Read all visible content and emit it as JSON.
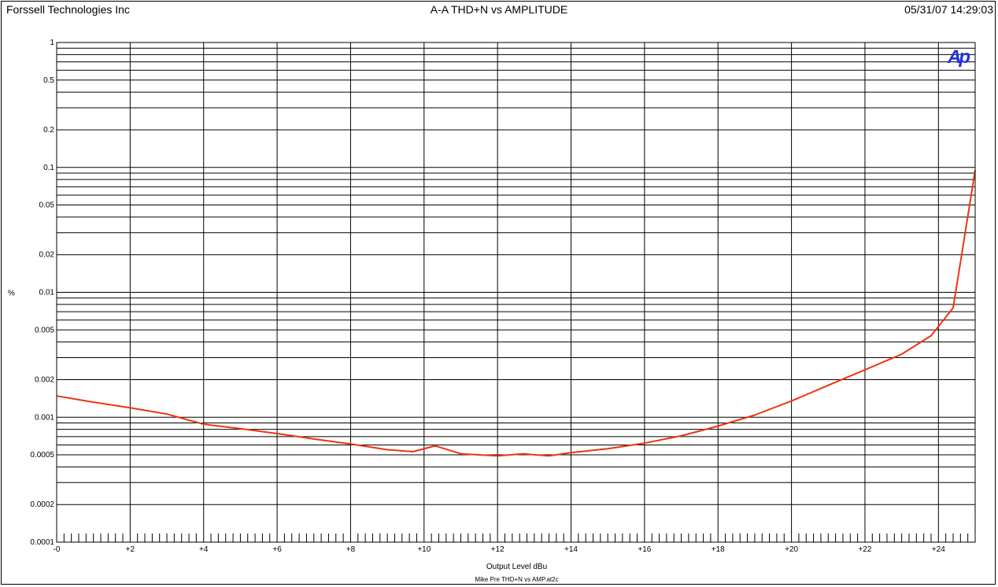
{
  "header": {
    "company": "Forssell Technologies Inc",
    "title": "A-A THD+N vs AMPLITUDE",
    "timestamp": "05/31/07 14:29:03"
  },
  "logo": {
    "text": "Ap",
    "color": "#2233dd"
  },
  "footer": {
    "filename": "Mike Pre THD+N vs AMP.at2c"
  },
  "chart_data": {
    "type": "line",
    "title": "A-A THD+N vs AMPLITUDE",
    "xlabel": "Output Level dBu",
    "ylabel": "%",
    "xlim": [
      0,
      25
    ],
    "ylim": [
      0.0001,
      1
    ],
    "yscale": "log",
    "grid": true,
    "x_ticks": [
      {
        "v": 0,
        "label": "-0"
      },
      {
        "v": 2,
        "label": "+2"
      },
      {
        "v": 4,
        "label": "+4"
      },
      {
        "v": 6,
        "label": "+6"
      },
      {
        "v": 8,
        "label": "+8"
      },
      {
        "v": 10,
        "label": "+10"
      },
      {
        "v": 12,
        "label": "+12"
      },
      {
        "v": 14,
        "label": "+14"
      },
      {
        "v": 16,
        "label": "+16"
      },
      {
        "v": 18,
        "label": "+18"
      },
      {
        "v": 20,
        "label": "+20"
      },
      {
        "v": 22,
        "label": "+22"
      },
      {
        "v": 24,
        "label": "+24"
      }
    ],
    "y_ticks": [
      {
        "v": 1,
        "label": "1"
      },
      {
        "v": 0.5,
        "label": "0.5"
      },
      {
        "v": 0.2,
        "label": "0.2"
      },
      {
        "v": 0.1,
        "label": "0.1"
      },
      {
        "v": 0.05,
        "label": "0.05"
      },
      {
        "v": 0.02,
        "label": "0.02"
      },
      {
        "v": 0.01,
        "label": "0.01"
      },
      {
        "v": 0.005,
        "label": "0.005"
      },
      {
        "v": 0.002,
        "label": "0.002"
      },
      {
        "v": 0.001,
        "label": "0.001"
      },
      {
        "v": 0.0005,
        "label": "0.0005"
      },
      {
        "v": 0.0002,
        "label": "0.0002"
      },
      {
        "v": 0.0001,
        "label": "0.0001"
      }
    ],
    "series": [
      {
        "color": "#ee3311",
        "x": [
          0,
          1,
          2,
          3,
          4,
          5,
          6,
          7,
          8,
          9,
          9.7,
          10.3,
          11,
          12,
          12.7,
          13.4,
          14,
          15,
          16,
          17,
          18,
          19,
          20,
          21,
          22,
          23,
          23.8,
          24.4,
          25
        ],
        "y": [
          0.00148,
          0.00132,
          0.00119,
          0.00106,
          0.00088,
          0.00081,
          0.00074,
          0.00067,
          0.00061,
          0.00055,
          0.00053,
          0.00059,
          0.00051,
          0.00049,
          0.00051,
          0.00049,
          0.00052,
          0.00056,
          0.00062,
          0.00071,
          0.00085,
          0.00104,
          0.00135,
          0.0018,
          0.0024,
          0.0032,
          0.0045,
          0.0075,
          0.095
        ]
      }
    ]
  }
}
